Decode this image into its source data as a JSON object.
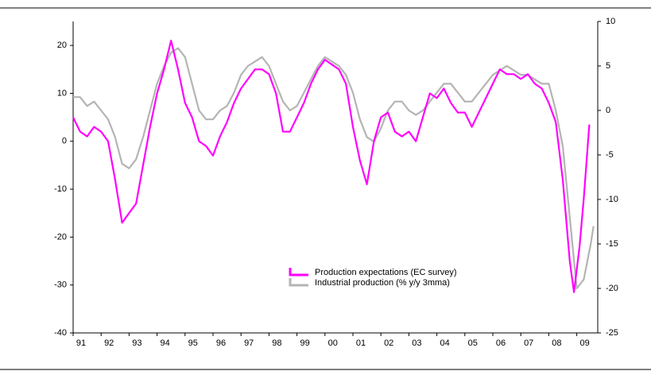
{
  "chart_data": {
    "type": "line",
    "series": [
      {
        "name": "Production expectations (EC survey)",
        "color": "#ff00ff",
        "axis": "y",
        "x": [
          1991.0,
          1991.25,
          1991.5,
          1991.75,
          1992.0,
          1992.25,
          1992.5,
          1992.75,
          1993.0,
          1993.25,
          1993.5,
          1993.75,
          1994.0,
          1994.25,
          1994.5,
          1994.75,
          1995.0,
          1995.25,
          1995.5,
          1995.75,
          1996.0,
          1996.25,
          1996.5,
          1996.75,
          1997.0,
          1997.25,
          1997.5,
          1997.75,
          1998.0,
          1998.25,
          1998.5,
          1998.75,
          1999.0,
          1999.25,
          1999.5,
          1999.75,
          2000.0,
          2000.25,
          2000.5,
          2000.75,
          2001.0,
          2001.25,
          2001.5,
          2001.75,
          2002.0,
          2002.25,
          2002.5,
          2002.75,
          2003.0,
          2003.25,
          2003.5,
          2003.75,
          2004.0,
          2004.25,
          2004.5,
          2004.75,
          2005.0,
          2005.25,
          2005.5,
          2005.75,
          2006.0,
          2006.25,
          2006.5,
          2006.75,
          2007.0,
          2007.25,
          2007.5,
          2007.75,
          2008.0,
          2008.25,
          2008.5,
          2008.75,
          2008.9,
          2009.1,
          2009.25,
          2009.45
        ],
        "values": [
          5,
          2,
          1,
          3,
          2,
          0,
          -8,
          -17,
          -15,
          -13,
          -5,
          3,
          10,
          15,
          21,
          15,
          8,
          5,
          0,
          -1,
          -3,
          1,
          4,
          8,
          11,
          13,
          15,
          15,
          14,
          10,
          2,
          2,
          5,
          8,
          12,
          15,
          17,
          16,
          15,
          12,
          3,
          -4,
          -9,
          0,
          5,
          6,
          2,
          1,
          2,
          0,
          5,
          10,
          9,
          11,
          8,
          6,
          6,
          3,
          6,
          9,
          12,
          15,
          14,
          14,
          13,
          14,
          12,
          11,
          8,
          4,
          -8,
          -25,
          -31.5,
          -22,
          -12,
          3.5
        ]
      },
      {
        "name": "Industrial production (% y/y 3mma)",
        "color": "#b4b4b4",
        "axis": "y2",
        "x": [
          1991.0,
          1991.25,
          1991.5,
          1991.75,
          1992.0,
          1992.25,
          1992.5,
          1992.75,
          1993.0,
          1993.25,
          1993.5,
          1993.75,
          1994.0,
          1994.25,
          1994.5,
          1994.75,
          1995.0,
          1995.25,
          1995.5,
          1995.75,
          1996.0,
          1996.25,
          1996.5,
          1996.75,
          1997.0,
          1997.25,
          1997.5,
          1997.75,
          1998.0,
          1998.25,
          1998.5,
          1998.75,
          1999.0,
          1999.25,
          1999.5,
          1999.75,
          2000.0,
          2000.25,
          2000.5,
          2000.75,
          2001.0,
          2001.25,
          2001.5,
          2001.75,
          2002.0,
          2002.25,
          2002.5,
          2002.75,
          2003.0,
          2003.25,
          2003.5,
          2003.75,
          2004.0,
          2004.25,
          2004.5,
          2004.75,
          2005.0,
          2005.25,
          2005.5,
          2005.75,
          2006.0,
          2006.25,
          2006.5,
          2006.75,
          2007.0,
          2007.25,
          2007.5,
          2007.75,
          2008.0,
          2008.25,
          2008.5,
          2008.75,
          2009.0,
          2009.25,
          2009.5,
          2009.6
        ],
        "values": [
          1.5,
          1.5,
          0.5,
          1,
          0,
          -1,
          -3,
          -6,
          -6.5,
          -5.5,
          -3,
          0,
          3,
          5,
          6.5,
          7,
          6,
          3,
          0,
          -1,
          -1,
          0,
          0.5,
          2,
          4,
          5,
          5.5,
          6,
          5,
          3,
          1,
          0,
          0.5,
          2,
          3.5,
          5,
          6,
          5.5,
          5,
          4,
          2,
          -1,
          -3,
          -3.5,
          -2,
          0,
          1,
          1,
          0,
          -0.5,
          0,
          1,
          2,
          3,
          3,
          2,
          1,
          1,
          2,
          3,
          4,
          4.5,
          5,
          4.5,
          4,
          4,
          3.5,
          3,
          3,
          0,
          -4,
          -12,
          -20,
          -19,
          -15,
          -13
        ]
      }
    ],
    "xlim": [
      1991,
      2009.75
    ],
    "xticks": [
      {
        "value": 1991,
        "label": "91"
      },
      {
        "value": 1992,
        "label": "92"
      },
      {
        "value": 1993,
        "label": "93"
      },
      {
        "value": 1994,
        "label": "94"
      },
      {
        "value": 1995,
        "label": "95"
      },
      {
        "value": 1996,
        "label": "96"
      },
      {
        "value": 1997,
        "label": "97"
      },
      {
        "value": 1998,
        "label": "98"
      },
      {
        "value": 1999,
        "label": "99"
      },
      {
        "value": 2000,
        "label": "00"
      },
      {
        "value": 2001,
        "label": "01"
      },
      {
        "value": 2002,
        "label": "02"
      },
      {
        "value": 2003,
        "label": "03"
      },
      {
        "value": 2004,
        "label": "04"
      },
      {
        "value": 2005,
        "label": "05"
      },
      {
        "value": 2006,
        "label": "06"
      },
      {
        "value": 2007,
        "label": "07"
      },
      {
        "value": 2008,
        "label": "08"
      },
      {
        "value": 2009,
        "label": "09"
      }
    ],
    "ylim": [
      -40,
      25
    ],
    "yticks": [
      -40,
      -30,
      -20,
      -10,
      0,
      10,
      20
    ],
    "y2lim": [
      -25,
      10
    ],
    "y2ticks": [
      -25,
      -20,
      -15,
      -10,
      -5,
      0,
      5,
      10
    ]
  }
}
